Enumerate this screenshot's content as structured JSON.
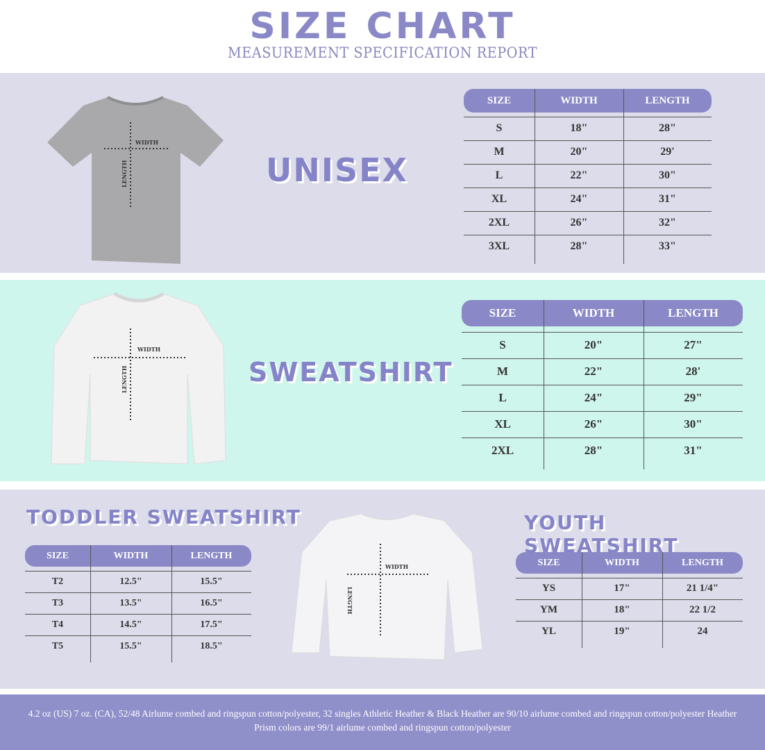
{
  "header": {
    "title": "SIZE CHART",
    "subtitle": "MEASUREMENT SPECIFICATION REPORT"
  },
  "colors": {
    "accent": "#8a88c6",
    "lavender_band": "#dcdcea",
    "mint_band": "#cff6ec",
    "footer": "#8f8fca"
  },
  "garment_labels": {
    "width": "WIDTH",
    "length": "LENGTH"
  },
  "sections": {
    "unisex": {
      "title": "UNISEX",
      "columns": [
        "SIZE",
        "WIDTH",
        "LENGTH"
      ],
      "rows": [
        [
          "S",
          "18\"",
          "28\""
        ],
        [
          "M",
          "20\"",
          "29'"
        ],
        [
          "L",
          "22\"",
          "30\""
        ],
        [
          "XL",
          "24\"",
          "31\""
        ],
        [
          "2XL",
          "26\"",
          "32\""
        ],
        [
          "3XL",
          "28\"",
          "33\""
        ]
      ]
    },
    "sweatshirt": {
      "title": "SWEATSHIRT",
      "columns": [
        "SIZE",
        "WIDTH",
        "LENGTH"
      ],
      "rows": [
        [
          "S",
          "20\"",
          "27\""
        ],
        [
          "M",
          "22\"",
          "28'"
        ],
        [
          "L",
          "24\"",
          "29\""
        ],
        [
          "XL",
          "26\"",
          "30\""
        ],
        [
          "2XL",
          "28\"",
          "31\""
        ]
      ]
    },
    "toddler": {
      "title": "TODDLER SWEATSHIRT",
      "columns": [
        "SIZE",
        "WIDTH",
        "LENGTH"
      ],
      "rows": [
        [
          "T2",
          "12.5\"",
          "15.5\""
        ],
        [
          "T3",
          "13.5\"",
          "16.5\""
        ],
        [
          "T4",
          "14.5\"",
          "17.5\""
        ],
        [
          "T5",
          "15.5\"",
          "18.5\""
        ]
      ]
    },
    "youth": {
      "title": "YOUTH SWEATSHIRT",
      "columns": [
        "SIZE",
        "WIDTH",
        "LENGTH"
      ],
      "rows": [
        [
          "YS",
          "17\"",
          "21 1/4\""
        ],
        [
          "YM",
          "18\"",
          "22 1/2"
        ],
        [
          "YL",
          "19\"",
          "24"
        ]
      ]
    }
  },
  "footer": {
    "text": "4.2 oz (US) 7 oz. (CA), 52/48 Airlume combed and ringspun cotton/polyester, 32 singles Athletic Heather & Black Heather are 90/10 airlume combed and ringspun cotton/polyester Heather Prism colors are 99/1 airlume combed and ringspun cotton/polyester"
  }
}
